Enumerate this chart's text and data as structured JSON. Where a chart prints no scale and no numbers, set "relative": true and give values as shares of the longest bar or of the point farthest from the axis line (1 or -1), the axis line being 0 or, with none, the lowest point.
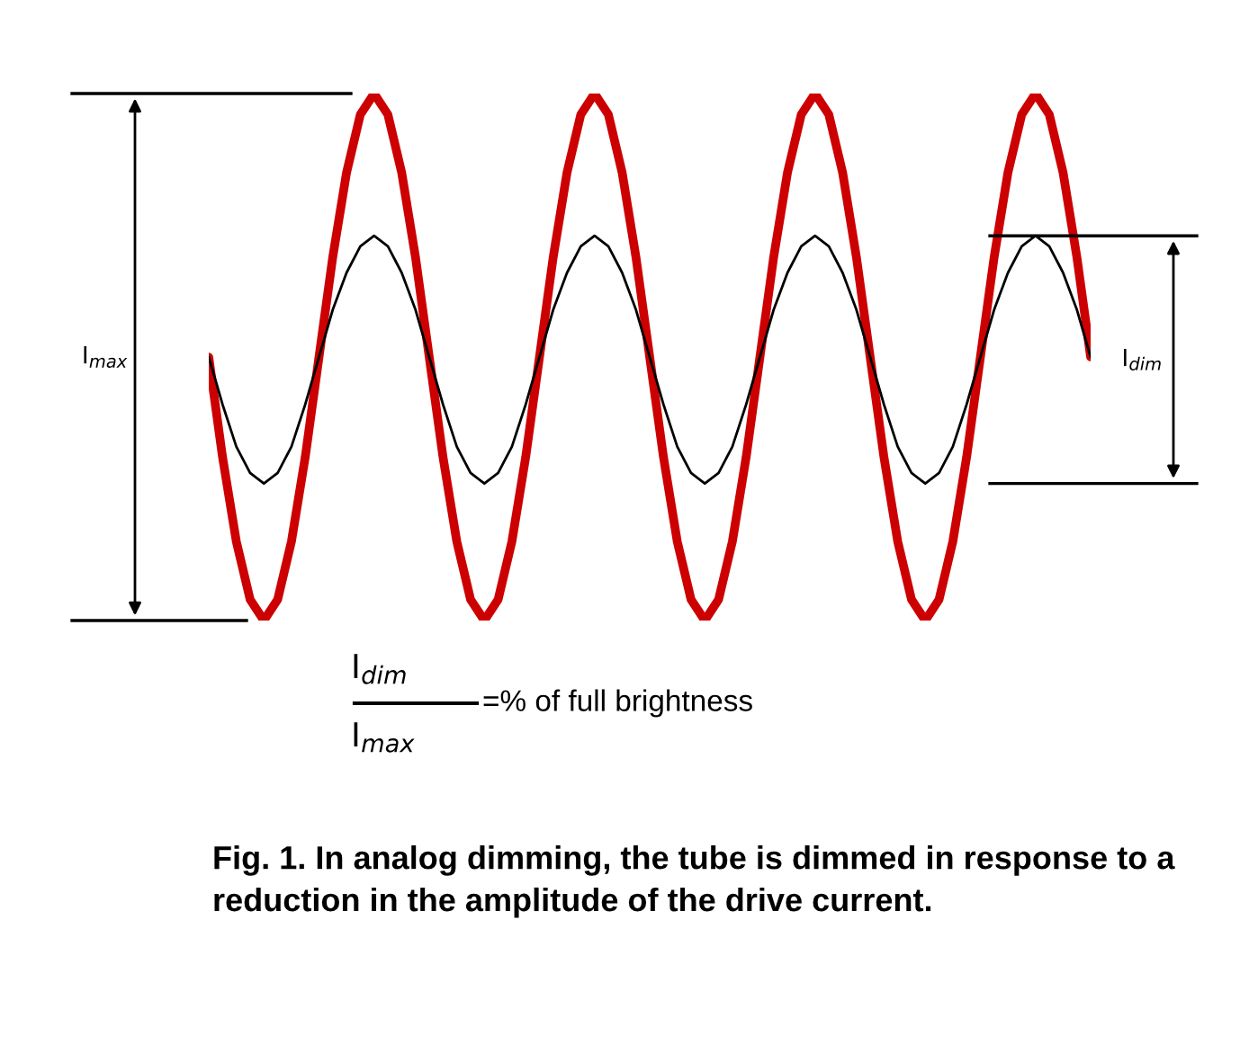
{
  "chart_data": {
    "type": "line",
    "relative": true,
    "categories": [
      null,
      null,
      null,
      null,
      null,
      null,
      null,
      null,
      null,
      null,
      null,
      null,
      null,
      null,
      null,
      null,
      null,
      null,
      null,
      null,
      null,
      null,
      null,
      null,
      null,
      null,
      null,
      null,
      null,
      null,
      null,
      null,
      null,
      null,
      null,
      null,
      null,
      null,
      null,
      null,
      null,
      null,
      null,
      null,
      null,
      null,
      null,
      null,
      null,
      null,
      null,
      null,
      null,
      null,
      null,
      null,
      null,
      null,
      null,
      null,
      null,
      null,
      null,
      null,
      null
    ],
    "series": [
      {
        "color": "#cc0000",
        "values": [
          0.5,
          0.31,
          0.15,
          0.04,
          0,
          0.04,
          0.15,
          0.31,
          0.5,
          0.69,
          0.85,
          0.96,
          1,
          0.96,
          0.85,
          0.69,
          0.5,
          0.31,
          0.15,
          0.04,
          0,
          0.04,
          0.15,
          0.31,
          0.5,
          0.69,
          0.85,
          0.96,
          1,
          0.96,
          0.85,
          0.69,
          0.5,
          0.31,
          0.15,
          0.04,
          0,
          0.04,
          0.15,
          0.31,
          0.5,
          0.69,
          0.85,
          0.96,
          1,
          0.96,
          0.85,
          0.69,
          0.5,
          0.31,
          0.15,
          0.04,
          0,
          0.04,
          0.15,
          0.31,
          0.5,
          0.69,
          0.85,
          0.96,
          1,
          0.96,
          0.85,
          0.69,
          0.5
        ]
      },
      {
        "color": "#000000",
        "values": [
          0.5,
          0.41,
          0.33,
          0.28,
          0.26,
          0.28,
          0.33,
          0.41,
          0.5,
          0.59,
          0.66,
          0.71,
          0.73,
          0.71,
          0.66,
          0.59,
          0.5,
          0.41,
          0.33,
          0.28,
          0.26,
          0.28,
          0.33,
          0.41,
          0.5,
          0.59,
          0.66,
          0.71,
          0.73,
          0.71,
          0.66,
          0.59,
          0.5,
          0.41,
          0.33,
          0.28,
          0.26,
          0.28,
          0.33,
          0.41,
          0.5,
          0.59,
          0.66,
          0.71,
          0.73,
          0.71,
          0.66,
          0.59,
          0.5,
          0.41,
          0.33,
          0.28,
          0.26,
          0.28,
          0.33,
          0.41,
          0.5,
          0.59,
          0.66,
          0.71,
          0.73,
          0.71,
          0.66,
          0.59,
          0.5
        ]
      }
    ],
    "annotations": [
      "I$_{max}$",
      "I$_{dim}$",
      "I$_{dim}$",
      "I$_{max}$",
      "=% of full brightness",
      "Fig. 1. In analog dimming, the tube is dimmed in response to a reduction in the amplitude of the drive current."
    ]
  }
}
